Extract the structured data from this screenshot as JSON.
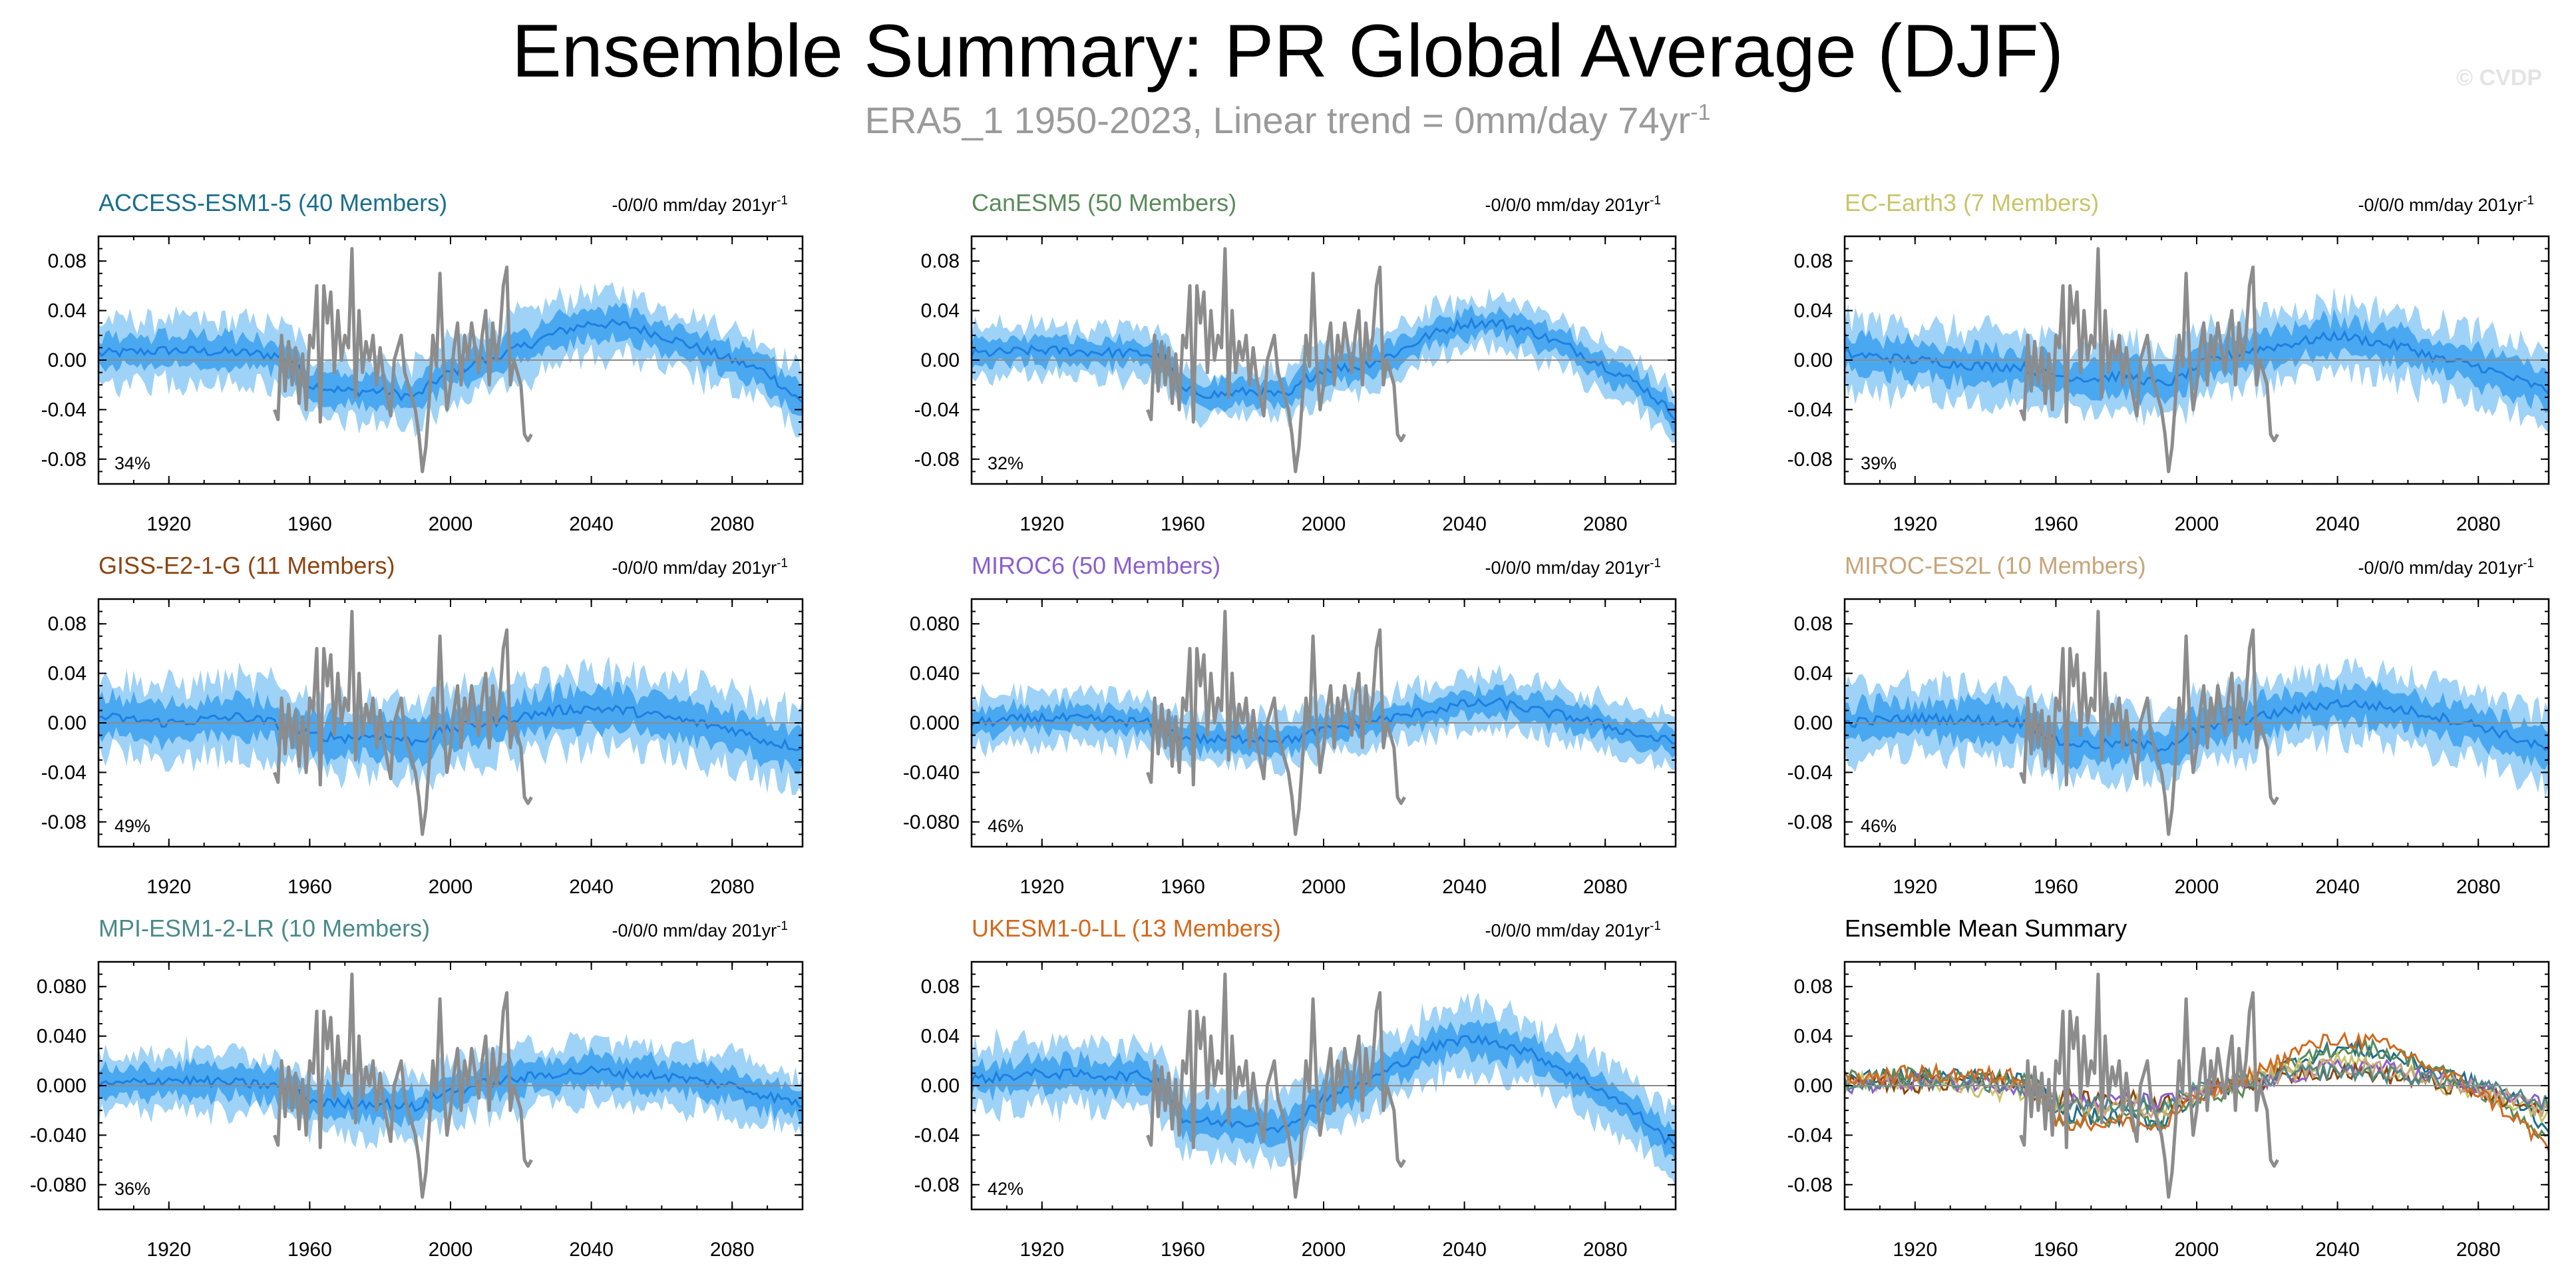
{
  "header": {
    "title": "Ensemble Summary: PR Global Average (DJF)",
    "subtitle_main": "ERA5_1 1950-2023, Linear trend = 0mm/day 74yr",
    "subtitle_sup": "-1",
    "watermark": "© CVDP"
  },
  "chart_data": [
    {
      "type": "line",
      "title": "ACCESS-ESM1-5 (40 Members)",
      "title_color": "#1a6e8c",
      "trend": "-0/0/0 mm/day 201yr",
      "trend_sup": "-1",
      "percent": "34%",
      "xlim": [
        1900,
        2100
      ],
      "ylim": [
        -0.1,
        0.1
      ],
      "xticks": [
        "1920",
        "1960",
        "2000",
        "2040",
        "2080"
      ],
      "yticks": [
        "0.08",
        "0.04",
        "0.00",
        "-0.04",
        "-0.08"
      ],
      "ytick_values": [
        0.08,
        0.04,
        0.0,
        -0.04,
        -0.08
      ],
      "ensemble_mean": {
        "x": [
          1900,
          1920,
          1940,
          1950,
          1955,
          1960,
          1970,
          1980,
          1990,
          1995,
          2000,
          2010,
          2020,
          2030,
          2040,
          2050,
          2060,
          2070,
          2080,
          2090,
          2100
        ],
        "y": [
          0.005,
          0.008,
          0.006,
          0.004,
          0.0,
          -0.02,
          -0.025,
          -0.025,
          -0.03,
          -0.018,
          -0.01,
          0.0,
          0.01,
          0.022,
          0.03,
          0.028,
          0.02,
          0.01,
          0.0,
          -0.01,
          -0.035
        ]
      },
      "spread_inner": 0.012,
      "spread_outer": 0.025
    },
    {
      "type": "line",
      "title": "CanESM5 (50 Members)",
      "title_color": "#5a8a5a",
      "trend": "-0/0/0 mm/day 201yr",
      "trend_sup": "-1",
      "percent": "32%",
      "xlim": [
        1900,
        2100
      ],
      "ylim": [
        -0.1,
        0.1
      ],
      "xticks": [
        "1920",
        "1960",
        "2000",
        "2040",
        "2080"
      ],
      "yticks": [
        "0.08",
        "0.04",
        "0.00",
        "-0.04",
        "-0.08"
      ],
      "ytick_values": [
        0.08,
        0.04,
        0.0,
        -0.04,
        -0.08
      ],
      "ensemble_mean": {
        "x": [
          1900,
          1920,
          1940,
          1950,
          1955,
          1960,
          1970,
          1980,
          1990,
          1995,
          2000,
          2010,
          2020,
          2030,
          2040,
          2050,
          2060,
          2070,
          2080,
          2090,
          2100
        ],
        "y": [
          0.005,
          0.008,
          0.006,
          0.005,
          0.0,
          -0.025,
          -0.028,
          -0.025,
          -0.03,
          -0.015,
          -0.008,
          -0.005,
          0.005,
          0.02,
          0.03,
          0.03,
          0.022,
          0.01,
          -0.005,
          -0.02,
          -0.045
        ]
      },
      "spread_inner": 0.01,
      "spread_outer": 0.02
    },
    {
      "type": "line",
      "title": "EC-Earth3 (7 Members)",
      "title_color": "#c9c46a",
      "trend": "-0/0/0 mm/day 201yr",
      "trend_sup": "-1",
      "percent": "39%",
      "xlim": [
        1900,
        2100
      ],
      "ylim": [
        -0.1,
        0.1
      ],
      "xticks": [
        "1920",
        "1960",
        "2000",
        "2040",
        "2080"
      ],
      "yticks": [
        "0.08",
        "0.04",
        "0.00",
        "-0.04",
        "-0.08"
      ],
      "ytick_values": [
        0.08,
        0.04,
        0.0,
        -0.04,
        -0.08
      ],
      "ensemble_mean": {
        "x": [
          1900,
          1920,
          1940,
          1950,
          1955,
          1960,
          1970,
          1980,
          1990,
          1995,
          2000,
          2010,
          2020,
          2030,
          2040,
          2050,
          2060,
          2070,
          2080,
          2090,
          2100
        ],
        "y": [
          0.005,
          0.0,
          -0.005,
          -0.005,
          -0.01,
          -0.012,
          -0.015,
          -0.012,
          -0.02,
          -0.015,
          -0.005,
          0.005,
          0.01,
          0.015,
          0.02,
          0.015,
          0.01,
          0.0,
          -0.005,
          -0.015,
          -0.025
        ]
      },
      "spread_inner": 0.014,
      "spread_outer": 0.028
    },
    {
      "type": "line",
      "title": "GISS-E2-1-G (11 Members)",
      "title_color": "#8b4513",
      "trend": "-0/0/0 mm/day 201yr",
      "trend_sup": "-1",
      "percent": "49%",
      "xlim": [
        1900,
        2100
      ],
      "ylim": [
        -0.1,
        0.1
      ],
      "xticks": [
        "1920",
        "1960",
        "2000",
        "2040",
        "2080"
      ],
      "yticks": [
        "0.08",
        "0.04",
        "0.00",
        "-0.04",
        "-0.08"
      ],
      "ytick_values": [
        0.08,
        0.04,
        0.0,
        -0.04,
        -0.08
      ],
      "ensemble_mean": {
        "x": [
          1900,
          1920,
          1940,
          1950,
          1955,
          1960,
          1970,
          1980,
          1990,
          1995,
          2000,
          2010,
          2020,
          2030,
          2040,
          2050,
          2060,
          2070,
          2080,
          2090,
          2100
        ],
        "y": [
          0.005,
          0.0,
          0.005,
          0.0,
          -0.005,
          -0.01,
          -0.012,
          -0.01,
          -0.015,
          -0.01,
          -0.005,
          0.0,
          0.005,
          0.01,
          0.012,
          0.01,
          0.005,
          0.0,
          -0.005,
          -0.015,
          -0.02
        ]
      },
      "spread_inner": 0.015,
      "spread_outer": 0.03
    },
    {
      "type": "line",
      "title": "MIROC6 (50 Members)",
      "title_color": "#8a5fd0",
      "trend": "-0/0/0 mm/day 201yr",
      "trend_sup": "-1",
      "percent": "46%",
      "xlim": [
        1900,
        2100
      ],
      "ylim": [
        -0.1,
        0.1
      ],
      "xticks": [
        "1920",
        "1960",
        "2000",
        "2040",
        "2080"
      ],
      "yticks": [
        "0.080",
        "0.040",
        "0.000",
        "-0.040",
        "-0.080"
      ],
      "ytick_values": [
        0.08,
        0.04,
        0.0,
        -0.04,
        -0.08
      ],
      "ensemble_mean": {
        "x": [
          1900,
          1920,
          1940,
          1950,
          1955,
          1960,
          1970,
          1980,
          1990,
          1995,
          2000,
          2010,
          2020,
          2030,
          2040,
          2050,
          2060,
          2070,
          2080,
          2090,
          2100
        ],
        "y": [
          0.0,
          0.004,
          0.002,
          0.0,
          -0.005,
          -0.012,
          -0.014,
          -0.012,
          -0.014,
          -0.01,
          -0.006,
          0.0,
          0.004,
          0.01,
          0.015,
          0.016,
          0.01,
          0.005,
          -0.002,
          -0.01,
          -0.016
        ]
      },
      "spread_inner": 0.01,
      "spread_outer": 0.02
    },
    {
      "type": "line",
      "title": "MIROC-ES2L (10 Members)",
      "title_color": "#c8a57a",
      "trend": "-0/0/0 mm/day 201yr",
      "trend_sup": "-1",
      "percent": "46%",
      "xlim": [
        1900,
        2100
      ],
      "ylim": [
        -0.1,
        0.1
      ],
      "xticks": [
        "1920",
        "1960",
        "2000",
        "2040",
        "2080"
      ],
      "yticks": [
        "0.08",
        "0.04",
        "0.00",
        "-0.04",
        "-0.08"
      ],
      "ytick_values": [
        0.08,
        0.04,
        0.0,
        -0.04,
        -0.08
      ],
      "ensemble_mean": {
        "x": [
          1900,
          1920,
          1940,
          1950,
          1955,
          1960,
          1970,
          1980,
          1990,
          1995,
          2000,
          2010,
          2020,
          2030,
          2040,
          2050,
          2060,
          2070,
          2080,
          2090,
          2100
        ],
        "y": [
          0.0,
          0.004,
          0.002,
          0.0,
          -0.005,
          -0.015,
          -0.018,
          -0.016,
          -0.02,
          -0.014,
          -0.006,
          0.0,
          0.006,
          0.012,
          0.016,
          0.014,
          0.01,
          0.004,
          -0.002,
          -0.012,
          -0.022
        ]
      },
      "spread_inner": 0.014,
      "spread_outer": 0.028
    },
    {
      "type": "line",
      "title": "MPI-ESM1-2-LR (10 Members)",
      "title_color": "#4a8a8a",
      "trend": "-0/0/0 mm/day 201yr",
      "trend_sup": "-1",
      "percent": "36%",
      "xlim": [
        1900,
        2100
      ],
      "ylim": [
        -0.1,
        0.1
      ],
      "xticks": [
        "1920",
        "1960",
        "2000",
        "2040",
        "2080"
      ],
      "yticks": [
        "0.080",
        "0.040",
        "0.000",
        "-0.040",
        "-0.080"
      ],
      "ytick_values": [
        0.08,
        0.04,
        0.0,
        -0.04,
        -0.08
      ],
      "ensemble_mean": {
        "x": [
          1900,
          1920,
          1940,
          1950,
          1955,
          1960,
          1970,
          1980,
          1990,
          1995,
          2000,
          2010,
          2020,
          2030,
          2040,
          2050,
          2060,
          2070,
          2080,
          2090,
          2100
        ],
        "y": [
          0.0,
          0.005,
          0.002,
          0.0,
          -0.004,
          -0.012,
          -0.015,
          -0.014,
          -0.018,
          -0.01,
          -0.004,
          0.002,
          0.006,
          0.01,
          0.012,
          0.01,
          0.008,
          0.004,
          0.0,
          -0.008,
          -0.015
        ]
      },
      "spread_inner": 0.012,
      "spread_outer": 0.024
    },
    {
      "type": "line",
      "title": "UKESM1-0-LL (13 Members)",
      "title_color": "#d2691e",
      "trend": "-0/0/0 mm/day 201yr",
      "trend_sup": "-1",
      "percent": "42%",
      "xlim": [
        1900,
        2100
      ],
      "ylim": [
        -0.1,
        0.1
      ],
      "xticks": [
        "1920",
        "1960",
        "2000",
        "2040",
        "2080"
      ],
      "yticks": [
        "0.08",
        "0.04",
        "0.00",
        "-0.04",
        "-0.08"
      ],
      "ytick_values": [
        0.08,
        0.04,
        0.0,
        -0.04,
        -0.08
      ],
      "ensemble_mean": {
        "x": [
          1900,
          1920,
          1940,
          1950,
          1955,
          1960,
          1970,
          1980,
          1990,
          1995,
          2000,
          2010,
          2020,
          2030,
          2040,
          2050,
          2060,
          2070,
          2080,
          2090,
          2100
        ],
        "y": [
          0.005,
          0.01,
          0.008,
          0.008,
          0.0,
          -0.028,
          -0.03,
          -0.03,
          -0.035,
          -0.02,
          -0.01,
          0.0,
          0.015,
          0.03,
          0.038,
          0.035,
          0.025,
          0.01,
          -0.005,
          -0.025,
          -0.05
        ]
      },
      "spread_inner": 0.012,
      "spread_outer": 0.026
    },
    {
      "type": "line",
      "title": "Ensemble Mean Summary",
      "title_color": "#000000",
      "percent": "",
      "xlim": [
        1900,
        2100
      ],
      "ylim": [
        -0.1,
        0.1
      ],
      "xticks": [
        "1920",
        "1960",
        "2000",
        "2040",
        "2080"
      ],
      "yticks": [
        "0.08",
        "0.04",
        "0.00",
        "-0.04",
        "-0.08"
      ],
      "ytick_values": [
        0.08,
        0.04,
        0.0,
        -0.04,
        -0.08
      ],
      "summary": true,
      "series_colors": [
        "#1a6e8c",
        "#5a8a5a",
        "#c9c46a",
        "#8b4513",
        "#8a5fd0",
        "#c8a57a",
        "#4a8a8a",
        "#d2691e"
      ]
    }
  ],
  "observations": {
    "name": "ERA5_1",
    "color": "#8c8c8c",
    "x": [
      1950,
      1951,
      1952,
      1953,
      1954,
      1955,
      1956,
      1957,
      1958,
      1959,
      1960,
      1961,
      1962,
      1963,
      1964,
      1965,
      1966,
      1967,
      1968,
      1969,
      1970,
      1971,
      1972,
      1973,
      1974,
      1975,
      1976,
      1977,
      1978,
      1979,
      1980,
      1981,
      1982,
      1983,
      1984,
      1985,
      1986,
      1987,
      1988,
      1989,
      1990,
      1991,
      1992,
      1993,
      1994,
      1995,
      1996,
      1997,
      1998,
      1999,
      2000,
      2001,
      2002,
      2003,
      2004,
      2005,
      2006,
      2007,
      2008,
      2009,
      2010,
      2011,
      2012,
      2013,
      2014,
      2015,
      2016,
      2017,
      2018,
      2019,
      2020,
      2021,
      2022,
      2023
    ],
    "y": [
      -0.04,
      -0.048,
      0.02,
      -0.025,
      0.015,
      -0.02,
      0.01,
      -0.035,
      0.005,
      -0.04,
      0.02,
      0.01,
      0.06,
      -0.05,
      0.06,
      0.03,
      0.055,
      -0.01,
      0.04,
      0.0,
      0.02,
      0.01,
      0.09,
      -0.03,
      0.04,
      -0.01,
      0.015,
      0.0,
      0.02,
      -0.02,
      0.01,
      -0.015,
      -0.03,
      -0.045,
      0.0,
      0.01,
      0.02,
      -0.01,
      -0.02,
      -0.03,
      -0.04,
      -0.06,
      -0.09,
      -0.07,
      -0.03,
      0.02,
      -0.005,
      0.07,
      0.0,
      -0.04,
      -0.02,
      0.01,
      0.03,
      -0.02,
      0.02,
      0.0,
      0.03,
      0.01,
      -0.01,
      0.02,
      0.04,
      -0.02,
      0.03,
      0.0,
      0.02,
      0.06,
      0.075,
      -0.02,
      0.0,
      -0.01,
      -0.02,
      -0.06,
      -0.065,
      -0.06
    ]
  }
}
